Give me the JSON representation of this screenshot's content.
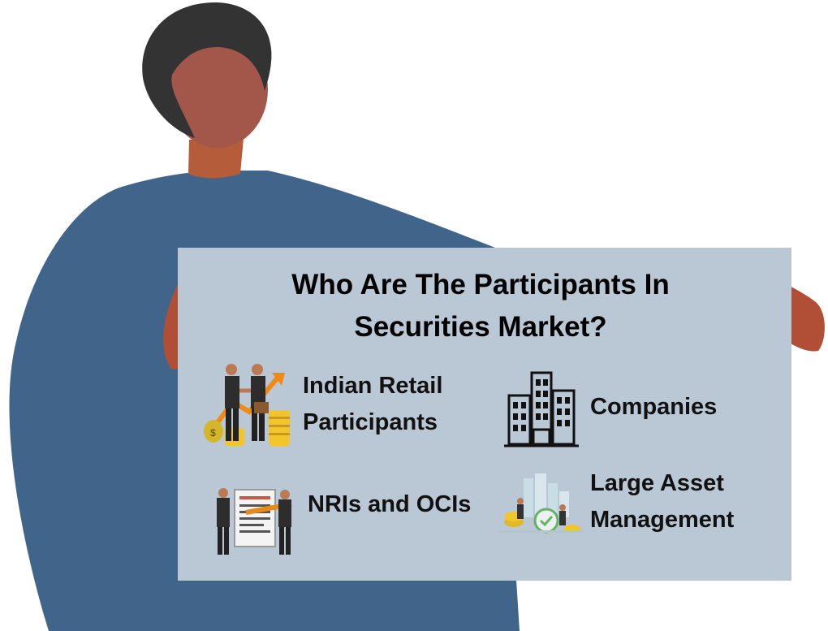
{
  "board": {
    "title_line1": "Who Are The Participants In",
    "title_line2": "Securities Market?",
    "background_color": "#bac8d5"
  },
  "participants": [
    {
      "line1": "Indian Retail",
      "line2": "Participants",
      "icon": "businessmen-handshake-coins-icon"
    },
    {
      "line1": "Companies",
      "line2": "",
      "icon": "office-building-icon"
    },
    {
      "line1": "NRIs and OCIs",
      "line2": "",
      "icon": "businessmen-contract-pen-icon"
    },
    {
      "line1": "Large Asset",
      "line2": "Management",
      "icon": "asset-management-icon"
    }
  ],
  "colors": {
    "shirt": "#41648b",
    "skin": "#a3574a",
    "hair": "#333333",
    "board": "#bac8d5"
  }
}
